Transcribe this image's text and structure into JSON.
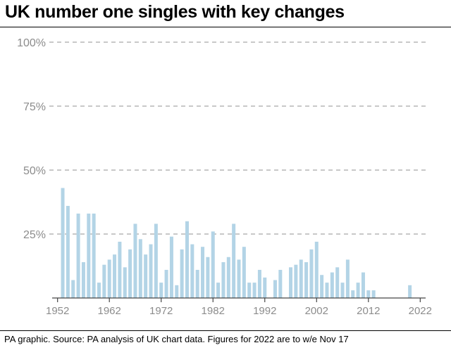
{
  "title": "UK number one singles with key changes",
  "source": "PA graphic. Source: PA analysis of UK chart data. Figures for 2022 are to w/e Nov 17",
  "colors": {
    "bar": "#b3d4e6",
    "grid": "#a8a8a8",
    "tick_label": "#8c8c8c",
    "axis": "#444444",
    "text": "#000000"
  },
  "chart_data": {
    "type": "bar",
    "title": "UK number one singles with key changes",
    "xlabel": "",
    "ylabel": "",
    "ylim": [
      0,
      100
    ],
    "xlim": [
      1952,
      2022
    ],
    "grid": true,
    "y_ticks": [
      {
        "value": 100,
        "label": "100%"
      },
      {
        "value": 75,
        "label": "75%"
      },
      {
        "value": 50,
        "label": "50%"
      },
      {
        "value": 25,
        "label": "25%"
      }
    ],
    "x_ticks": [
      {
        "value": 1952,
        "label": "1952"
      },
      {
        "value": 1962,
        "label": "1962"
      },
      {
        "value": 1972,
        "label": "1972"
      },
      {
        "value": 1982,
        "label": "1982"
      },
      {
        "value": 1992,
        "label": "1992"
      },
      {
        "value": 2002,
        "label": "2002"
      },
      {
        "value": 2012,
        "label": "2012"
      },
      {
        "value": 2022,
        "label": "2022"
      }
    ],
    "x": [
      1952,
      1953,
      1954,
      1955,
      1956,
      1957,
      1958,
      1959,
      1960,
      1961,
      1962,
      1963,
      1964,
      1965,
      1966,
      1967,
      1968,
      1969,
      1970,
      1971,
      1972,
      1973,
      1974,
      1975,
      1976,
      1977,
      1978,
      1979,
      1980,
      1981,
      1982,
      1983,
      1984,
      1985,
      1986,
      1987,
      1988,
      1989,
      1990,
      1991,
      1992,
      1993,
      1994,
      1995,
      1996,
      1997,
      1998,
      1999,
      2000,
      2001,
      2002,
      2003,
      2004,
      2005,
      2006,
      2007,
      2008,
      2009,
      2010,
      2011,
      2012,
      2013,
      2014,
      2015,
      2016,
      2017,
      2018,
      2019,
      2020,
      2021,
      2022
    ],
    "values": [
      0,
      43,
      36,
      7,
      33,
      14,
      33,
      33,
      6,
      13,
      15,
      17,
      22,
      12,
      19,
      29,
      23,
      17,
      21,
      29,
      6,
      11,
      24,
      5,
      19,
      30,
      21,
      11,
      20,
      16,
      26,
      6,
      14,
      16,
      29,
      15,
      20,
      6,
      6,
      11,
      8,
      0,
      7,
      11,
      0,
      12,
      13,
      15,
      14,
      19,
      22,
      9,
      6,
      10,
      12,
      6,
      15,
      3,
      6,
      10,
      3,
      3,
      0,
      0,
      0,
      0,
      0,
      0,
      5,
      0,
      0
    ]
  }
}
